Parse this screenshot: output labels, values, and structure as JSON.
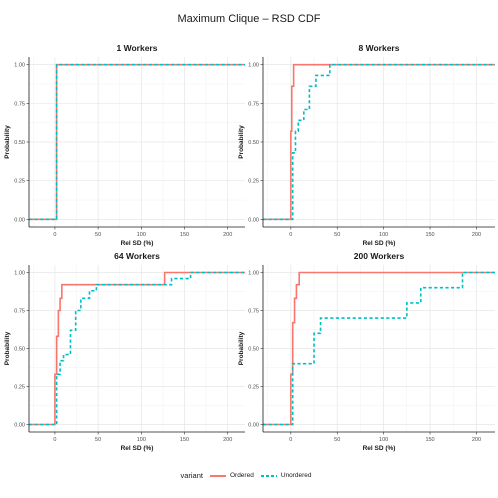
{
  "title": "Maximum Clique – RSD CDF",
  "legend": {
    "title": "variant",
    "items": [
      {
        "label": "Ordered",
        "color": "#F8766D",
        "dash": "solid"
      },
      {
        "label": "Unordered",
        "color": "#00BFC4",
        "dash": "dashed"
      }
    ]
  },
  "chart_data": [
    {
      "type": "line",
      "subtype": "step-cdf",
      "title": "1 Workers",
      "xlabel": "Rel SD (%)",
      "ylabel": "Probability",
      "xlim": [
        -30,
        220
      ],
      "ylim": [
        0,
        1
      ],
      "x_ticks": [
        0,
        50,
        100,
        150,
        200
      ],
      "y_ticks": [
        0.0,
        0.25,
        0.5,
        0.75,
        1.0
      ],
      "y_tick_labels": [
        "0.00",
        "0.25",
        "0.50",
        "0.75",
        "1.00"
      ],
      "grid": true,
      "series": [
        {
          "name": "Ordered",
          "color": "#F8766D",
          "dash": "solid",
          "points": [
            [
              -30,
              0
            ],
            [
              2,
              0
            ],
            [
              2,
              1
            ],
            [
              220,
              1
            ]
          ]
        },
        {
          "name": "Unordered",
          "color": "#00BFC4",
          "dash": "dashed",
          "points": [
            [
              -30,
              0
            ],
            [
              2,
              0
            ],
            [
              2,
              1
            ],
            [
              220,
              1
            ]
          ]
        }
      ]
    },
    {
      "type": "line",
      "subtype": "step-cdf",
      "title": "8 Workers",
      "xlabel": "Rel SD (%)",
      "ylabel": "Probability",
      "xlim": [
        -30,
        220
      ],
      "ylim": [
        0,
        1
      ],
      "x_ticks": [
        0,
        50,
        100,
        150,
        200
      ],
      "y_ticks": [
        0.0,
        0.25,
        0.5,
        0.75,
        1.0
      ],
      "y_tick_labels": [
        "0.00",
        "0.25",
        "0.50",
        "0.75",
        "1.00"
      ],
      "grid": true,
      "series": [
        {
          "name": "Ordered",
          "color": "#F8766D",
          "dash": "solid",
          "points": [
            [
              -30,
              0
            ],
            [
              0,
              0
            ],
            [
              0,
              0.57
            ],
            [
              1,
              0.57
            ],
            [
              1,
              0.86
            ],
            [
              3,
              0.86
            ],
            [
              3,
              1
            ],
            [
              220,
              1
            ]
          ]
        },
        {
          "name": "Unordered",
          "color": "#00BFC4",
          "dash": "dashed",
          "points": [
            [
              -30,
              0
            ],
            [
              2,
              0
            ],
            [
              2,
              0.43
            ],
            [
              5,
              0.43
            ],
            [
              5,
              0.57
            ],
            [
              8,
              0.57
            ],
            [
              8,
              0.64
            ],
            [
              14,
              0.64
            ],
            [
              14,
              0.71
            ],
            [
              20,
              0.71
            ],
            [
              20,
              0.86
            ],
            [
              27,
              0.86
            ],
            [
              27,
              0.93
            ],
            [
              42,
              0.93
            ],
            [
              42,
              1
            ],
            [
              220,
              1
            ]
          ]
        }
      ]
    },
    {
      "type": "line",
      "subtype": "step-cdf",
      "title": "64 Workers",
      "xlabel": "Rel SD (%)",
      "ylabel": "Probability",
      "xlim": [
        -30,
        220
      ],
      "ylim": [
        0,
        1
      ],
      "x_ticks": [
        0,
        50,
        100,
        150,
        200
      ],
      "y_ticks": [
        0.0,
        0.25,
        0.5,
        0.75,
        1.0
      ],
      "y_tick_labels": [
        "0.00",
        "0.25",
        "0.50",
        "0.75",
        "1.00"
      ],
      "grid": true,
      "series": [
        {
          "name": "Ordered",
          "color": "#F8766D",
          "dash": "solid",
          "points": [
            [
              -30,
              0
            ],
            [
              0,
              0
            ],
            [
              0,
              0.33
            ],
            [
              2,
              0.33
            ],
            [
              2,
              0.58
            ],
            [
              4,
              0.58
            ],
            [
              4,
              0.75
            ],
            [
              6,
              0.75
            ],
            [
              6,
              0.83
            ],
            [
              8,
              0.83
            ],
            [
              8,
              0.92
            ],
            [
              127,
              0.92
            ],
            [
              127,
              1
            ],
            [
              220,
              1
            ]
          ]
        },
        {
          "name": "Unordered",
          "color": "#00BFC4",
          "dash": "dashed",
          "points": [
            [
              -30,
              0
            ],
            [
              2,
              0
            ],
            [
              2,
              0.33
            ],
            [
              6,
              0.33
            ],
            [
              6,
              0.42
            ],
            [
              10,
              0.42
            ],
            [
              10,
              0.46
            ],
            [
              18,
              0.46
            ],
            [
              18,
              0.62
            ],
            [
              24,
              0.62
            ],
            [
              24,
              0.75
            ],
            [
              30,
              0.75
            ],
            [
              30,
              0.83
            ],
            [
              40,
              0.83
            ],
            [
              40,
              0.88
            ],
            [
              48,
              0.88
            ],
            [
              48,
              0.92
            ],
            [
              135,
              0.92
            ],
            [
              135,
              0.96
            ],
            [
              157,
              0.96
            ],
            [
              157,
              1
            ],
            [
              220,
              1
            ]
          ]
        }
      ]
    },
    {
      "type": "line",
      "subtype": "step-cdf",
      "title": "200 Workers",
      "xlabel": "Rel SD (%)",
      "ylabel": "Probability",
      "xlim": [
        -30,
        220
      ],
      "ylim": [
        0,
        1
      ],
      "x_ticks": [
        0,
        50,
        100,
        150,
        200
      ],
      "y_ticks": [
        0.0,
        0.25,
        0.5,
        0.75,
        1.0
      ],
      "y_tick_labels": [
        "0.00",
        "0.25",
        "0.50",
        "0.75",
        "1.00"
      ],
      "grid": true,
      "series": [
        {
          "name": "Ordered",
          "color": "#F8766D",
          "dash": "solid",
          "points": [
            [
              -30,
              0
            ],
            [
              0,
              0
            ],
            [
              0,
              0.33
            ],
            [
              2,
              0.33
            ],
            [
              2,
              0.67
            ],
            [
              4,
              0.67
            ],
            [
              4,
              0.83
            ],
            [
              6,
              0.83
            ],
            [
              6,
              0.92
            ],
            [
              9,
              0.92
            ],
            [
              9,
              1
            ],
            [
              220,
              1
            ]
          ]
        },
        {
          "name": "Unordered",
          "color": "#00BFC4",
          "dash": "dashed",
          "points": [
            [
              -30,
              0
            ],
            [
              2,
              0
            ],
            [
              2,
              0.4
            ],
            [
              25,
              0.4
            ],
            [
              25,
              0.6
            ],
            [
              32,
              0.6
            ],
            [
              32,
              0.7
            ],
            [
              125,
              0.7
            ],
            [
              125,
              0.8
            ],
            [
              140,
              0.8
            ],
            [
              140,
              0.9
            ],
            [
              185,
              0.9
            ],
            [
              185,
              1
            ],
            [
              220,
              1
            ]
          ]
        }
      ]
    }
  ]
}
